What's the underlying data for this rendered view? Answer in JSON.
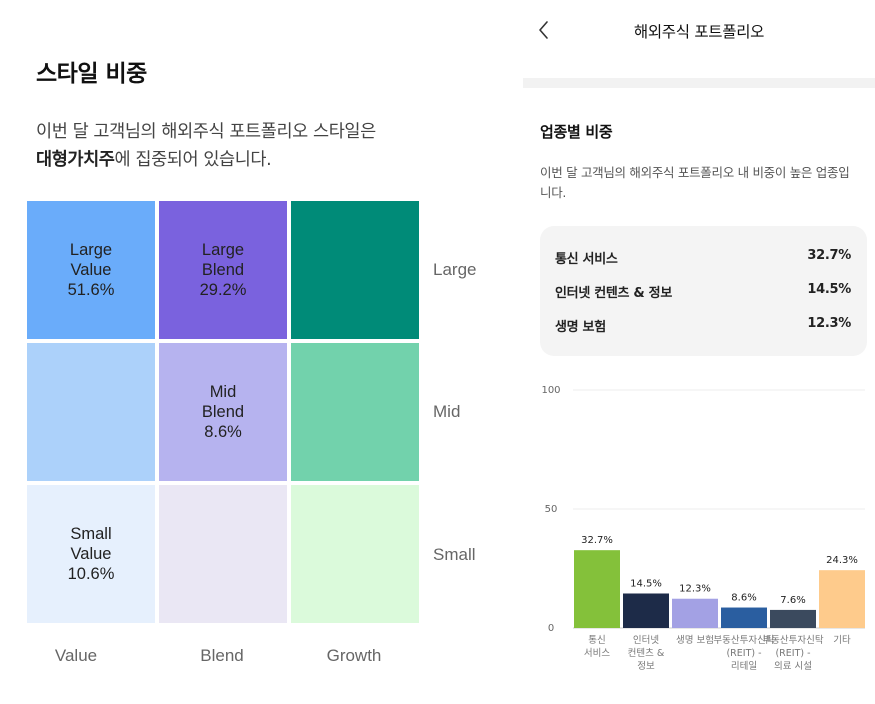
{
  "style_section": {
    "title": "스타일 비중",
    "desc_line1": "이번 달 고객님의 해외주식 포트폴리오 스타일은",
    "desc_bold": "대형가치주",
    "desc_rest": "에 집중되어 있습니다.",
    "cells": [
      {
        "row": 0,
        "col": 0,
        "lines": [
          "Large",
          "Value",
          "51.6%"
        ],
        "color": "#6aacfa"
      },
      {
        "row": 0,
        "col": 1,
        "lines": [
          "Large",
          "Blend",
          "29.2%"
        ],
        "color": "#7a62de"
      },
      {
        "row": 0,
        "col": 2,
        "lines": [],
        "color": "#008b78"
      },
      {
        "row": 1,
        "col": 0,
        "lines": [],
        "color": "#acd1fa"
      },
      {
        "row": 1,
        "col": 1,
        "lines": [
          "Mid",
          "Blend",
          "8.6%"
        ],
        "color": "#b6b3ef"
      },
      {
        "row": 1,
        "col": 2,
        "lines": [],
        "color": "#72d2ac"
      },
      {
        "row": 2,
        "col": 0,
        "lines": [
          "Small",
          "Value",
          "10.6%"
        ],
        "color": "#e6f0fd"
      },
      {
        "row": 2,
        "col": 1,
        "lines": [],
        "color": "#eae7f4"
      },
      {
        "row": 2,
        "col": 2,
        "lines": [],
        "color": "#dbfadb"
      }
    ],
    "row_labels": [
      "Large",
      "Mid",
      "Small"
    ],
    "col_labels": [
      "Value",
      "Blend",
      "Growth"
    ]
  },
  "header": {
    "title": "해외주식 포트폴리오",
    "back_icon": "chevron-left-icon"
  },
  "industry": {
    "title": "업종별 비중",
    "desc": "이번 달 고객님의 해외주식 포트폴리오 내 비중이 높은 업종입니다.",
    "top3": [
      {
        "name": "통신 서비스",
        "pct": "32.7%"
      },
      {
        "name": "인터넷 컨텐츠 & 정보",
        "pct": "14.5%"
      },
      {
        "name": "생명 보험",
        "pct": "12.3%"
      }
    ]
  },
  "chart_data": {
    "type": "bar",
    "categories": [
      [
        "통신",
        "서비스"
      ],
      [
        "인터넷",
        "컨텐츠 &",
        "정보"
      ],
      [
        "생명 보험"
      ],
      [
        "부동산투자신탁",
        "(REIT) -",
        "리테일"
      ],
      [
        "부동산투자신탁",
        "(REIT) -",
        "의료 시설"
      ],
      [
        "기타"
      ]
    ],
    "values": [
      32.7,
      14.5,
      12.3,
      8.6,
      7.6,
      24.3
    ],
    "value_labels": [
      "32.7%",
      "14.5%",
      "12.3%",
      "8.6%",
      "7.6%",
      "24.3%"
    ],
    "colors": [
      "#84c13a",
      "#1d2b48",
      "#a3a1e4",
      "#2a5ea0",
      "#3b4a5e",
      "#fecb8c"
    ],
    "yticks": [
      0,
      50,
      100
    ],
    "ylim": [
      0,
      100
    ],
    "grid": true
  }
}
